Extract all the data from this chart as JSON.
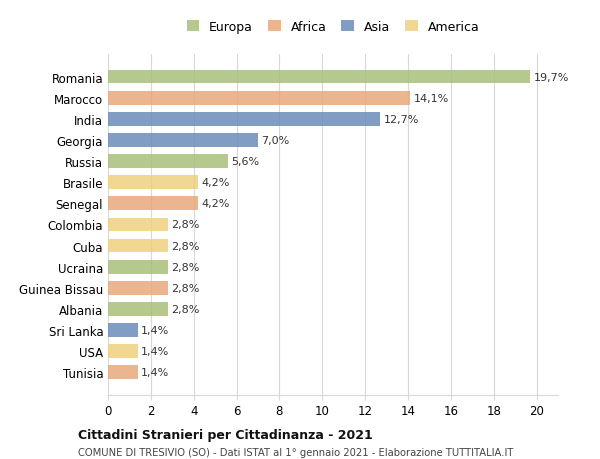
{
  "countries": [
    "Romania",
    "Marocco",
    "India",
    "Georgia",
    "Russia",
    "Brasile",
    "Senegal",
    "Colombia",
    "Cuba",
    "Ucraina",
    "Guinea Bissau",
    "Albania",
    "Sri Lanka",
    "USA",
    "Tunisia"
  ],
  "values": [
    19.7,
    14.1,
    12.7,
    7.0,
    5.6,
    4.2,
    4.2,
    2.8,
    2.8,
    2.8,
    2.8,
    2.8,
    1.4,
    1.4,
    1.4
  ],
  "labels": [
    "19,7%",
    "14,1%",
    "12,7%",
    "7,0%",
    "5,6%",
    "4,2%",
    "4,2%",
    "2,8%",
    "2,8%",
    "2,8%",
    "2,8%",
    "2,8%",
    "1,4%",
    "1,4%",
    "1,4%"
  ],
  "continents": [
    "Europa",
    "Africa",
    "Asia",
    "Asia",
    "Europa",
    "America",
    "Africa",
    "America",
    "America",
    "Europa",
    "Africa",
    "Europa",
    "Asia",
    "America",
    "Africa"
  ],
  "colors": {
    "Europa": "#a8c07a",
    "Africa": "#e8a87c",
    "Asia": "#6b8cba",
    "America": "#f0d080"
  },
  "legend_order": [
    "Europa",
    "Africa",
    "Asia",
    "America"
  ],
  "title1": "Cittadini Stranieri per Cittadinanza - 2021",
  "title2": "COMUNE DI TRESIVIO (SO) - Dati ISTAT al 1° gennaio 2021 - Elaborazione TUTTITALIA.IT",
  "xlim": [
    0,
    21
  ],
  "xticks": [
    0,
    2,
    4,
    6,
    8,
    10,
    12,
    14,
    16,
    18,
    20
  ],
  "background_color": "#ffffff",
  "grid_color": "#d8d8d8"
}
